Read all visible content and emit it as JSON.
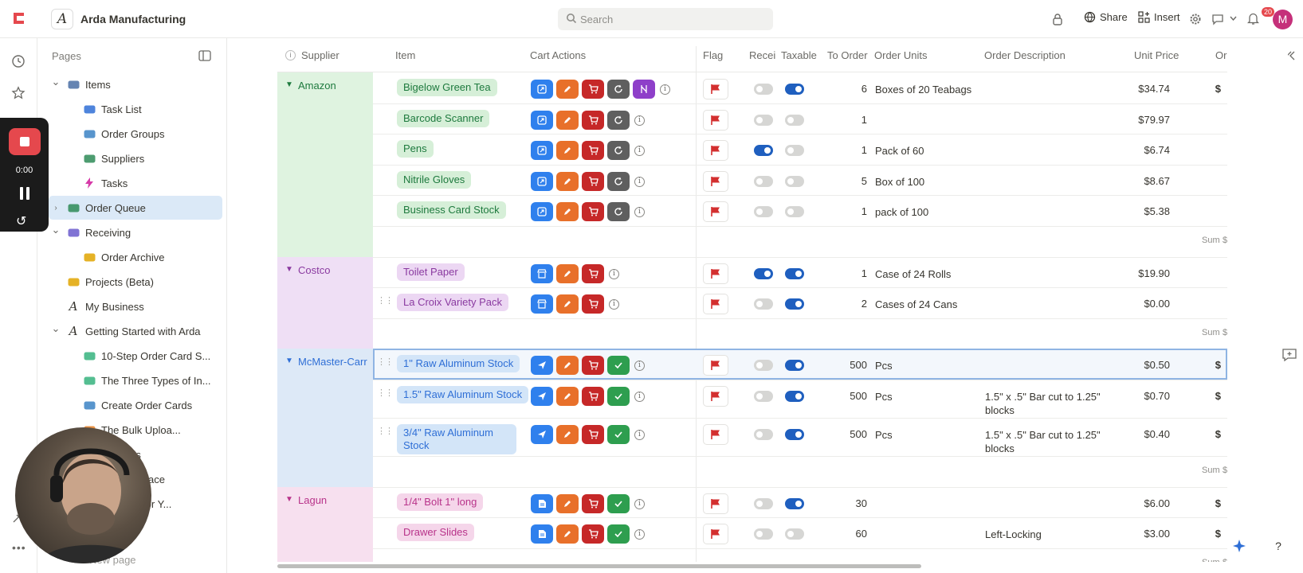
{
  "app": {
    "workspace_initial": "A",
    "workspace_name": "Arda Manufacturing",
    "search_placeholder": "Search",
    "share_label": "Share",
    "insert_label": "Insert",
    "notification_count": "20",
    "avatar_initial": "M"
  },
  "sidebar": {
    "header": "Pages",
    "items": [
      {
        "label": "Items",
        "icon": "gears-icon",
        "indent": 0,
        "caret": "down"
      },
      {
        "label": "Task List",
        "icon": "checklist-icon",
        "indent": 1,
        "caret": ""
      },
      {
        "label": "Order Groups",
        "icon": "cards-icon",
        "indent": 1,
        "caret": ""
      },
      {
        "label": "Suppliers",
        "icon": "truck-icon",
        "indent": 1,
        "caret": ""
      },
      {
        "label": "Tasks",
        "icon": "bolt-icon",
        "indent": 1,
        "caret": ""
      },
      {
        "label": "Order Queue",
        "icon": "cart-icon",
        "indent": 0,
        "caret": "right",
        "active": true
      },
      {
        "label": "Receiving",
        "icon": "inbox-icon",
        "indent": 0,
        "caret": "down"
      },
      {
        "label": "Order Archive",
        "icon": "archive-icon",
        "indent": 1,
        "caret": ""
      },
      {
        "label": "Projects (Beta)",
        "icon": "lightbulb-icon",
        "indent": 0,
        "caret": ""
      },
      {
        "label": "My Business",
        "icon": "arda-logo-icon",
        "indent": 0,
        "caret": ""
      },
      {
        "label": "Getting Started with Arda",
        "icon": "arda-logo-icon",
        "indent": 0,
        "caret": "down"
      },
      {
        "label": "10-Step Order Card S...",
        "icon": "number-icon",
        "indent": 1,
        "caret": ""
      },
      {
        "label": "The Three Types of In...",
        "icon": "globe-icon",
        "indent": 1,
        "caret": ""
      },
      {
        "label": "Create Order Cards",
        "icon": "cards-icon",
        "indent": 1,
        "caret": ""
      },
      {
        "label": "The Bulk Uploa...",
        "icon": "upload-icon",
        "indent": 1,
        "caret": ""
      },
      {
        "label": "er Cards",
        "icon": "cards-icon",
        "indent": 1,
        "caret": ""
      },
      {
        "label": "ur Workspace",
        "icon": "workspace-icon",
        "indent": 1,
        "caret": ""
      },
      {
        "label": "ze Arda For Y...",
        "icon": "settings-icon",
        "indent": 1,
        "caret": ""
      }
    ],
    "new_page_label": "New page"
  },
  "recorder": {
    "time": "0:00"
  },
  "table": {
    "columns": {
      "supplier": "Supplier",
      "item": "Item",
      "cart_actions": "Cart Actions",
      "flag": "Flag",
      "received": "Recei",
      "taxable": "Taxable",
      "to_order": "To Order",
      "order_units": "Order Units",
      "order_description": "Order Description",
      "unit_price": "Unit Price",
      "order_total": "Or"
    },
    "sum_label": "Sum",
    "sum_suffix": "$",
    "colors": {
      "amazon_bg": "#dff3e0",
      "costco_bg": "#efdff5",
      "mcmaster_bg": "#dde9f7",
      "lagun_bg": "#f7e0ef"
    },
    "groups": [
      {
        "supplier": "Amazon",
        "rows": [
          {
            "item": "Bigelow Green Tea",
            "actions": [
              "link",
              "edit",
              "cart",
              "sync",
              "extra"
            ],
            "flag": true,
            "received": false,
            "taxable": true,
            "to_order": "6",
            "units": "Boxes of 20 Teabags",
            "description": "",
            "price": "$34.74",
            "total": "$"
          },
          {
            "item": "Barcode Scanner",
            "actions": [
              "link",
              "edit",
              "cart",
              "sync"
            ],
            "flag": true,
            "received": false,
            "taxable": false,
            "to_order": "1",
            "units": "",
            "description": "",
            "price": "$79.97",
            "total": ""
          },
          {
            "item": "Pens",
            "actions": [
              "link",
              "edit",
              "cart",
              "sync"
            ],
            "flag": true,
            "received": true,
            "taxable": false,
            "to_order": "1",
            "units": "Pack of 60",
            "description": "",
            "price": "$6.74",
            "total": ""
          },
          {
            "item": "Nitrile Gloves",
            "actions": [
              "link",
              "edit",
              "cart",
              "sync"
            ],
            "flag": true,
            "received": false,
            "taxable": false,
            "to_order": "5",
            "units": "Box of 100",
            "description": "",
            "price": "$8.67",
            "total": ""
          },
          {
            "item": "Business Card Stock",
            "actions": [
              "link",
              "edit",
              "cart",
              "sync"
            ],
            "flag": true,
            "received": false,
            "taxable": false,
            "to_order": "1",
            "units": "pack of 100",
            "description": "",
            "price": "$5.38",
            "total": ""
          }
        ]
      },
      {
        "supplier": "Costco",
        "rows": [
          {
            "item": "Toilet Paper",
            "actions": [
              "store",
              "edit",
              "cart"
            ],
            "flag": true,
            "received": true,
            "taxable": true,
            "to_order": "1",
            "units": "Case of 24 Rolls",
            "description": "",
            "price": "$19.90",
            "total": ""
          },
          {
            "item": "La Croix Variety Pack",
            "actions": [
              "store",
              "edit",
              "cart"
            ],
            "flag": true,
            "received": false,
            "taxable": true,
            "to_order": "2",
            "units": "Cases of 24 Cans",
            "description": "",
            "price": "$0.00",
            "total": ""
          }
        ]
      },
      {
        "supplier": "McMaster-Carr",
        "rows": [
          {
            "item": "1\" Raw Aluminum Stock",
            "actions": [
              "send",
              "edit",
              "cart",
              "check"
            ],
            "flag": true,
            "received": false,
            "taxable": true,
            "to_order": "500",
            "units": "Pcs",
            "description": "",
            "price": "$0.50",
            "total": "$"
          },
          {
            "item": "1.5\" Raw Aluminum Stock",
            "actions": [
              "send",
              "edit",
              "cart",
              "check"
            ],
            "flag": true,
            "received": false,
            "taxable": true,
            "to_order": "500",
            "units": "Pcs",
            "description": "1.5\" x .5\" Bar cut to 1.25\" blocks",
            "price": "$0.70",
            "total": "$"
          },
          {
            "item": "3/4\" Raw Aluminum Stock",
            "actions": [
              "send",
              "edit",
              "cart",
              "check"
            ],
            "flag": true,
            "received": false,
            "taxable": true,
            "to_order": "500",
            "units": "Pcs",
            "description": "1.5\" x .5\" Bar cut to 1.25\" blocks",
            "price": "$0.40",
            "total": "$"
          }
        ]
      },
      {
        "supplier": "Lagun",
        "rows": [
          {
            "item": "1/4\" Bolt 1\" long",
            "actions": [
              "doc",
              "edit",
              "cart",
              "check"
            ],
            "flag": true,
            "received": false,
            "taxable": true,
            "to_order": "30",
            "units": "",
            "description": "",
            "price": "$6.00",
            "total": "$"
          },
          {
            "item": "Drawer Slides",
            "actions": [
              "doc",
              "edit",
              "cart",
              "check"
            ],
            "flag": true,
            "received": false,
            "taxable": false,
            "to_order": "60",
            "units": "",
            "description": "Left-Locking",
            "price": "$3.00",
            "total": "$"
          }
        ]
      }
    ]
  }
}
